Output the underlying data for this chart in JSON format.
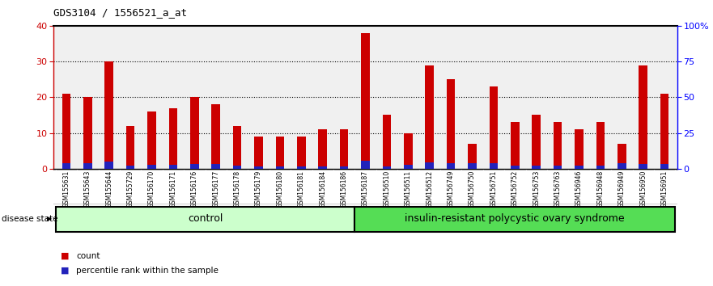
{
  "title": "GDS3104 / 1556521_a_at",
  "samples": [
    "GSM155631",
    "GSM155643",
    "GSM155644",
    "GSM155729",
    "GSM156170",
    "GSM156171",
    "GSM156176",
    "GSM156177",
    "GSM156178",
    "GSM156179",
    "GSM156180",
    "GSM156181",
    "GSM156184",
    "GSM156186",
    "GSM156187",
    "GSM156510",
    "GSM156511",
    "GSM156512",
    "GSM156749",
    "GSM156750",
    "GSM156751",
    "GSM156752",
    "GSM156753",
    "GSM156763",
    "GSM156946",
    "GSM156948",
    "GSM156949",
    "GSM156950",
    "GSM156951"
  ],
  "counts": [
    21,
    20,
    30,
    12,
    16,
    17,
    20,
    18,
    12,
    9,
    9,
    9,
    11,
    11,
    38,
    15,
    10,
    29,
    25,
    7,
    23,
    13,
    15,
    13,
    11,
    13,
    7,
    29,
    21
  ],
  "percentile": [
    1.5,
    1.5,
    2.0,
    0.8,
    1.2,
    1.2,
    1.3,
    1.3,
    0.8,
    0.6,
    0.6,
    0.6,
    0.6,
    0.6,
    2.3,
    0.6,
    1.0,
    1.8,
    1.6,
    1.6,
    1.6,
    0.9,
    0.8,
    0.9,
    0.9,
    0.9,
    1.6,
    1.3,
    1.3
  ],
  "ctrl_count": 14,
  "control_label": "control",
  "disease_label": "insulin-resistant polycystic ovary syndrome",
  "disease_state_label": "disease state",
  "ylim_left": [
    0,
    40
  ],
  "ylim_right": [
    0,
    100
  ],
  "yticks_left": [
    0,
    10,
    20,
    30,
    40
  ],
  "yticks_right": [
    0,
    25,
    50,
    75,
    100
  ],
  "ytick_labels_right": [
    "0",
    "25",
    "50",
    "75",
    "100%"
  ],
  "bar_color_count": "#cc0000",
  "bar_color_pct": "#2222bb",
  "control_bg_light": "#ccffcc",
  "control_bg_dark": "#55dd55",
  "axis_label_bg": "#d0d0d0",
  "plot_bg": "#f0f0f0",
  "legend_count": "count",
  "legend_pct": "percentile rank within the sample",
  "bar_width": 0.4
}
